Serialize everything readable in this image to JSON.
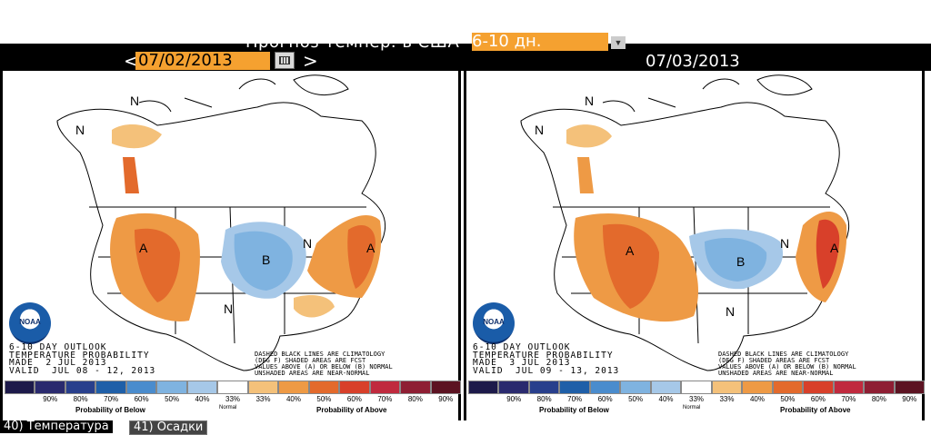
{
  "header": {
    "title": "Прогноз темпер. в США",
    "period_select": "6-10 дн.",
    "prev_label": "<",
    "next_label": ">",
    "date_input": "07/02/2013",
    "date_right": "07/03/2013"
  },
  "panels": [
    {
      "outlook_text": "6-10 DAY OUTLOOK\nTEMPERATURE PROBABILITY\nMADE  2 JUL 2013\nVALID  JUL 08 - 12, 2013",
      "notes_text": "DASHED BLACK LINES ARE CLIMATOLOGY\n(DEG F) SHADED AREAS ARE FCST\nVALUES ABOVE (A) OR BELOW (B) NORMAL\nUNSHADED AREAS ARE NEAR-NORMAL"
    },
    {
      "outlook_text": "6-10 DAY OUTLOOK\nTEMPERATURE PROBABILITY\nMADE  3 JUL 2013\nVALID  JUL 09 - 13, 2013",
      "notes_text": "DASHED BLACK LINES ARE CLIMATOLOGY\n(DEG F) SHADED AREAS ARE FCST\nVALUES ABOVE (A) OR BELOW (B) NORMAL\nUNSHADED AREAS ARE NEAR-NORMAL"
    }
  ],
  "legend": {
    "ticks": [
      "90%",
      "80%",
      "70%",
      "60%",
      "50%",
      "40%",
      "33%",
      "33%",
      "40%",
      "50%",
      "60%",
      "70%",
      "80%",
      "90%"
    ],
    "below_label": "Probability of Below",
    "normal_label": "Normal",
    "above_label": "Probability of Above",
    "colors": [
      "#1d1a4a",
      "#2a2a6e",
      "#283f8c",
      "#1f5fa8",
      "#4a8ccd",
      "#7fb3e0",
      "#a6c8e8",
      "#ffffff",
      "#f4c17a",
      "#ee9a45",
      "#e36a2c",
      "#d8402a",
      "#c02a3e",
      "#8e1e33",
      "#5c1322"
    ]
  },
  "map_labels": {
    "above": "A",
    "below": "B",
    "normal": "N",
    "noaa": "NOAA"
  },
  "tabs": [
    "40) Температура",
    "41) Осадки"
  ],
  "colors": {
    "above_light": "#f4c17a",
    "above_mid": "#ee9a45",
    "above_dark": "#e36a2c",
    "below_light": "#a6c8e8",
    "below_mid": "#7fb3e0",
    "below_dark": "#4a8ccd"
  }
}
